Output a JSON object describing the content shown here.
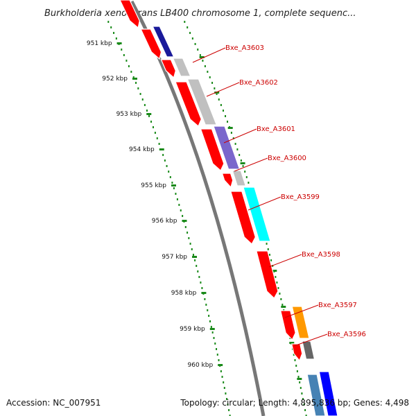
{
  "title": "Burkholderia xenovorans LB400 chromosome 1, complete sequenc...",
  "footer": {
    "accession": "Accession: NC_007951",
    "summary": "Topology: circular; Length: 4,895,836 bp; Genes: 4,498"
  },
  "ticks": [
    "951 kbp",
    "952 kbp",
    "953 kbp",
    "954 kbp",
    "955 kbp",
    "956 kbp",
    "957 kbp",
    "958 kbp",
    "959 kbp",
    "960 kbp"
  ],
  "gene_labels": [
    "Bxe_A3603",
    "Bxe_A3602",
    "Bxe_A3601",
    "Bxe_A3600",
    "Bxe_A3599",
    "Bxe_A3598",
    "Bxe_A3597",
    "Bxe_A3596"
  ],
  "colors": {
    "forward": "#ff0000",
    "axis": "#777777",
    "ticks": "#1a8a1a",
    "labels": "#cc0000",
    "gray": "#c0c0c0",
    "navy": "#1a1a9a",
    "purple": "#7a66cc",
    "cyan": "#00ffff",
    "orange": "#ff9900",
    "darkgray": "#666666",
    "steelblue": "#4682b4",
    "blue": "#0000ff"
  }
}
